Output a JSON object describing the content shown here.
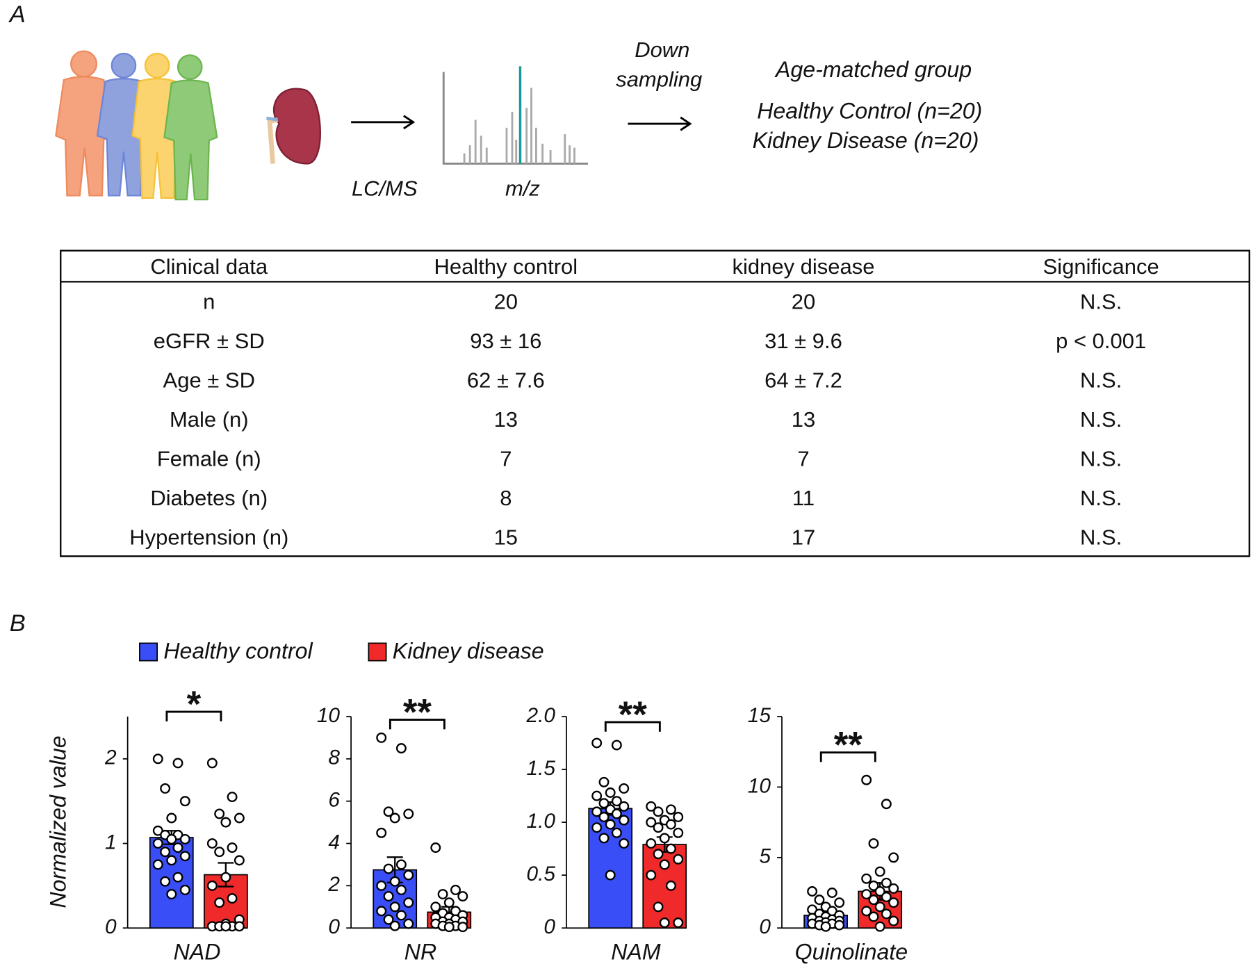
{
  "panel_a": {
    "label": "A",
    "lcms": "LC/MS",
    "mz": "m/z",
    "down": "Down",
    "sampling": "sampling",
    "group_title": "Age-matched group",
    "group_hc": "Healthy Control (n=20)",
    "group_kd": "Kidney Disease (n=20)"
  },
  "table": {
    "header": [
      "Clinical data",
      "Healthy control",
      "kidney disease",
      "Significance"
    ],
    "rows": [
      [
        "n",
        20,
        20,
        "N.S."
      ],
      [
        "eGFR ± SD",
        "93 ± 16",
        "31 ± 9.6",
        "p < 0.001"
      ],
      [
        "Age ± SD",
        "62 ± 7.6",
        "64 ± 7.2",
        "N.S."
      ],
      [
        "Male (n)",
        13,
        13,
        "N.S."
      ],
      [
        "Female (n)",
        7,
        7,
        "N.S."
      ],
      [
        "Diabetes (n)",
        8,
        11,
        "N.S."
      ],
      [
        "Hypertension (n)",
        15,
        17,
        "N.S."
      ]
    ]
  },
  "panel_b": {
    "label": "B"
  },
  "chart_data": [
    {
      "type": "bar",
      "xlabel": "NAD",
      "ylabel": "Normalized value",
      "annotation": "*",
      "ylim": [
        0,
        2.5
      ],
      "yticks": [
        0,
        1,
        2
      ],
      "series": [
        {
          "name": "Healthy control",
          "color": "#3a4ef7",
          "values": [
            1.07
          ],
          "errors": [
            0.08
          ],
          "points": [
            2.0,
            1.95,
            1.65,
            1.5,
            1.3,
            1.15,
            1.1,
            1.1,
            1.05,
            1.05,
            1.0,
            0.95,
            0.9,
            0.85,
            0.8,
            0.75,
            0.6,
            0.55,
            0.45,
            0.4
          ]
        },
        {
          "name": "Kidney disease",
          "color": "#f02a2a",
          "values": [
            0.63
          ],
          "errors": [
            0.14
          ],
          "points": [
            1.95,
            1.55,
            1.35,
            1.3,
            1.25,
            1.0,
            0.95,
            0.9,
            0.8,
            0.6,
            0.5,
            0.35,
            0.3,
            0.1,
            0.05,
            0.02,
            0.02,
            0.02,
            0.02,
            0.02
          ]
        }
      ]
    },
    {
      "type": "bar",
      "xlabel": "NR",
      "annotation": "**",
      "ylim": [
        0,
        10
      ],
      "yticks": [
        0,
        2,
        4,
        6,
        8,
        10
      ],
      "series": [
        {
          "color": "#3a4ef7",
          "values": [
            2.75
          ],
          "errors": [
            0.6
          ],
          "points": [
            9.0,
            8.5,
            5.5,
            5.4,
            5.2,
            4.5,
            3.0,
            2.8,
            2.5,
            2.2,
            2.0,
            1.8,
            1.5,
            1.2,
            1.0,
            0.8,
            0.6,
            0.4,
            0.2,
            0.1
          ]
        },
        {
          "color": "#f02a2a",
          "values": [
            0.75
          ],
          "errors": [
            0.25
          ],
          "points": [
            3.8,
            1.8,
            1.6,
            1.5,
            1.2,
            1.0,
            0.8,
            0.7,
            0.6,
            0.5,
            0.5,
            0.4,
            0.3,
            0.3,
            0.2,
            0.2,
            0.1,
            0.1,
            0.05,
            0.05
          ]
        }
      ]
    },
    {
      "type": "bar",
      "xlabel": "NAM",
      "annotation": "**",
      "ylim": [
        0,
        2
      ],
      "yticks": [
        0,
        0.5,
        {
          "value": 1,
          "label": "1.0"
        },
        1.5,
        {
          "value": 2,
          "label": "2.0"
        }
      ],
      "series": [
        {
          "color": "#3a4ef7",
          "values": [
            1.13
          ],
          "errors": [
            0.06
          ],
          "points": [
            1.75,
            1.73,
            1.38,
            1.32,
            1.28,
            1.25,
            1.2,
            1.18,
            1.15,
            1.12,
            1.1,
            1.08,
            1.05,
            1.02,
            0.98,
            0.95,
            0.9,
            0.85,
            0.8,
            0.5
          ]
        },
        {
          "color": "#f02a2a",
          "values": [
            0.79
          ],
          "errors": [
            0.07
          ],
          "points": [
            1.15,
            1.12,
            1.1,
            1.05,
            1.02,
            1.0,
            0.98,
            0.95,
            0.9,
            0.85,
            0.8,
            0.75,
            0.7,
            0.65,
            0.6,
            0.5,
            0.4,
            0.2,
            0.05,
            0.05
          ]
        }
      ]
    },
    {
      "type": "bar",
      "xlabel": "Quinolinate",
      "annotation": "**",
      "ylim": [
        0,
        15
      ],
      "yticks": [
        0,
        5,
        10,
        15
      ],
      "series": [
        {
          "color": "#3a4ef7",
          "values": [
            0.9
          ],
          "errors": [
            0.2
          ],
          "points": [
            2.6,
            2.5,
            2.0,
            1.8,
            1.5,
            1.3,
            1.2,
            1.0,
            0.9,
            0.8,
            0.7,
            0.6,
            0.5,
            0.5,
            0.4,
            0.3,
            0.3,
            0.2,
            0.2,
            0.1
          ]
        },
        {
          "color": "#f02a2a",
          "values": [
            2.6
          ],
          "errors": [
            0.6
          ],
          "points": [
            10.5,
            8.8,
            6.0,
            5.0,
            4.0,
            3.5,
            3.2,
            3.0,
            2.8,
            2.6,
            2.4,
            2.2,
            2.0,
            1.8,
            1.5,
            1.2,
            1.0,
            0.8,
            0.5,
            0.1
          ]
        }
      ]
    }
  ]
}
